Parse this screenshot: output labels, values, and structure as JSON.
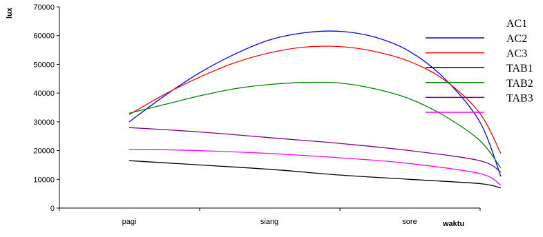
{
  "chart_data": {
    "type": "line",
    "ylabel": "lux",
    "xlabel": "waktu",
    "categories": [
      "pagi",
      "siang",
      "sore"
    ],
    "ylim": [
      0,
      70000
    ],
    "yticks": [
      0,
      10000,
      20000,
      30000,
      40000,
      50000,
      60000,
      70000
    ],
    "grid": false,
    "legend_placement": "right",
    "legend_unpaired_label": "AC1",
    "series": [
      {
        "name": "AC2",
        "color": "#0000ff",
        "x": [
          0.0,
          0.25,
          0.5,
          0.75,
          1.0,
          1.25,
          1.5,
          1.75,
          2.0,
          2.25,
          2.5,
          2.65
        ],
        "values": [
          30000,
          39000,
          47000,
          53500,
          58500,
          61000,
          61500,
          59500,
          54500,
          45000,
          30000,
          11000
        ]
      },
      {
        "name": "AC3",
        "color": "#ff0000",
        "x": [
          0.0,
          0.25,
          0.5,
          0.75,
          1.0,
          1.25,
          1.5,
          1.75,
          2.0,
          2.25,
          2.5,
          2.65
        ],
        "values": [
          32500,
          39500,
          45500,
          50500,
          54000,
          56000,
          56200,
          54500,
          51000,
          44500,
          33000,
          19000
        ]
      },
      {
        "name": "TAB1",
        "color": "#000000",
        "x": [
          0.0,
          0.5,
          1.0,
          1.5,
          2.0,
          2.5,
          2.65
        ],
        "values": [
          16500,
          15000,
          13500,
          11500,
          10000,
          8500,
          7000
        ]
      },
      {
        "name": "TAB2",
        "color": "#008000",
        "x": [
          0.0,
          0.25,
          0.5,
          0.75,
          1.0,
          1.25,
          1.5,
          1.75,
          2.0,
          2.25,
          2.5,
          2.65
        ],
        "values": [
          33000,
          36000,
          39000,
          41500,
          43000,
          43700,
          43500,
          41500,
          38000,
          32000,
          23500,
          14000
        ]
      },
      {
        "name": "TAB3",
        "color": "#800080",
        "x": [
          0.0,
          0.5,
          1.0,
          1.5,
          2.0,
          2.5,
          2.65
        ],
        "values": [
          28000,
          26500,
          24500,
          22500,
          20000,
          16500,
          12500
        ]
      },
      {
        "name": "",
        "color": "#ff00ff",
        "x": [
          0.0,
          0.5,
          1.0,
          1.5,
          2.0,
          2.5,
          2.65
        ],
        "values": [
          20500,
          20000,
          19000,
          17500,
          15500,
          12000,
          8000
        ]
      }
    ]
  }
}
